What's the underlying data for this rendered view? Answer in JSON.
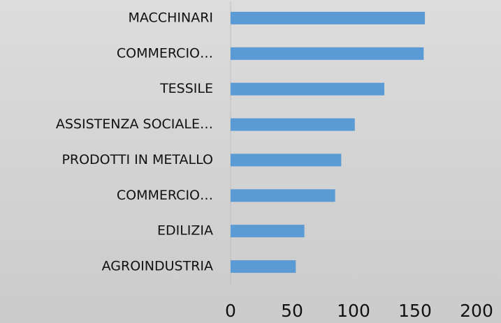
{
  "chart_data": {
    "type": "barh",
    "categories": [
      "MACCHINARI",
      "COMMERCIO…",
      "TESSILE",
      "ASSISTENZA SOCIALE…",
      "PRODOTTI IN METALLO",
      "COMMERCIO…",
      "EDILIZIA",
      "AGROINDUSTRIA"
    ],
    "values": [
      158,
      157,
      125,
      101,
      90,
      85,
      60,
      53
    ],
    "color": "#5b9bd5",
    "xlim": [
      0,
      200
    ],
    "xticks": [
      0,
      50,
      100,
      150,
      200
    ],
    "grid": false
  }
}
